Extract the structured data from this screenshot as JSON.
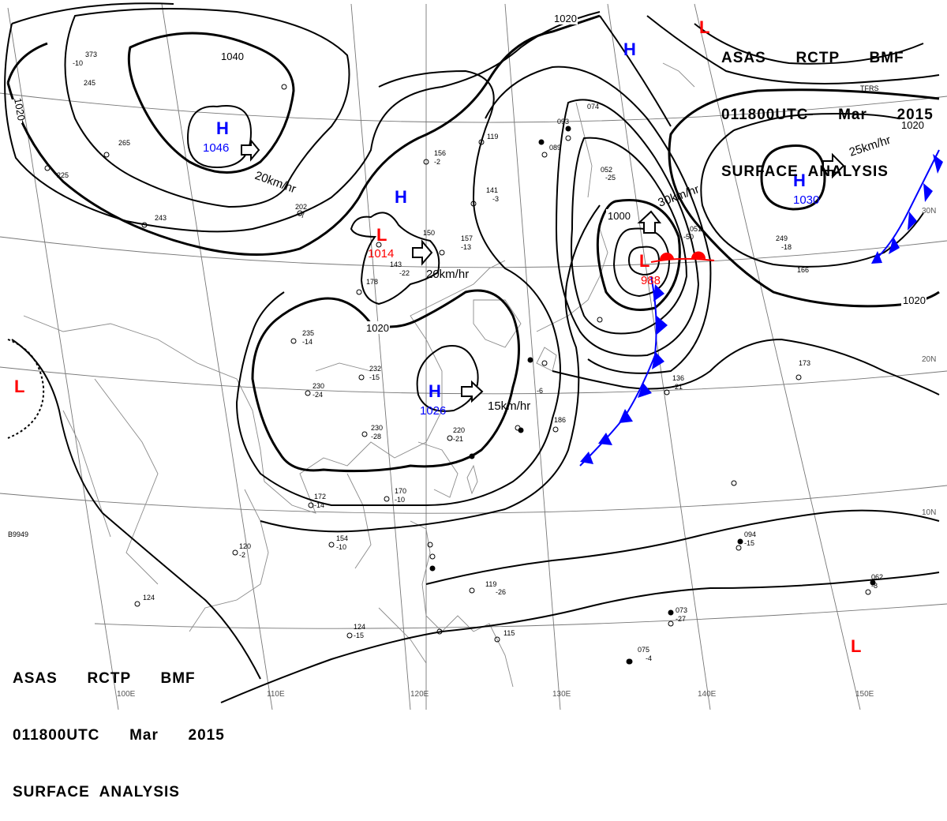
{
  "header": {
    "line1": "ASAS      RCTP      BMF",
    "line2": "011800UTC      Mar      2015",
    "line3": "SURFACE  ANALYSIS"
  },
  "colors": {
    "high": "#0000ff",
    "low": "#ff0000",
    "cold_front": "#0000ff",
    "warm_front": "#ff0000",
    "isobar": "#000000",
    "geography": "#888888"
  },
  "pressure_centers": [
    {
      "type": "H",
      "value": "1046"
    },
    {
      "type": "H",
      "value": "1026"
    },
    {
      "type": "H",
      "value": "1030"
    },
    {
      "type": "H",
      "value": ""
    },
    {
      "type": "H",
      "value": ""
    },
    {
      "type": "L",
      "value": "1014"
    },
    {
      "type": "L",
      "value": "988"
    },
    {
      "type": "L",
      "value": ""
    },
    {
      "type": "L",
      "value": ""
    },
    {
      "type": "L",
      "value": ""
    }
  ],
  "isobar_labels": [
    "1040",
    "1020",
    "1020",
    "1020",
    "1000",
    "1020",
    "1020"
  ],
  "motion_labels": [
    "20km/hr",
    "20km/hr",
    "15km/hr",
    "30km/hr",
    "25km/hr"
  ],
  "longitude_labels": [
    "100E",
    "110E",
    "120E",
    "130E",
    "140E",
    "150E"
  ],
  "latitude_labels": [
    "30N",
    "20N",
    "10N"
  ],
  "station_labels": [
    "373",
    "-10",
    "249",
    "-18",
    "235",
    "-14",
    "232",
    "-15",
    "230",
    "-24",
    "230",
    "-28",
    "220",
    "-21",
    "172",
    "-14",
    "170",
    "-10",
    "154",
    "-10",
    "120",
    "-2",
    "124",
    "124",
    "-15",
    "119",
    "-26",
    "115",
    "075",
    "-4",
    "136",
    "-21",
    "173",
    "094",
    "-15",
    "073",
    "-27",
    "062",
    "-8",
    "157",
    "-13",
    "150",
    "143",
    "-22",
    "141",
    "-3",
    "156",
    "-2",
    "119",
    "089",
    "093",
    "074",
    "052",
    "-25",
    "051",
    "-50",
    "202",
    "-7",
    "243",
    "225",
    "265",
    "245",
    "178",
    "-6",
    "186",
    "166",
    "TFRS",
    "B9949"
  ]
}
